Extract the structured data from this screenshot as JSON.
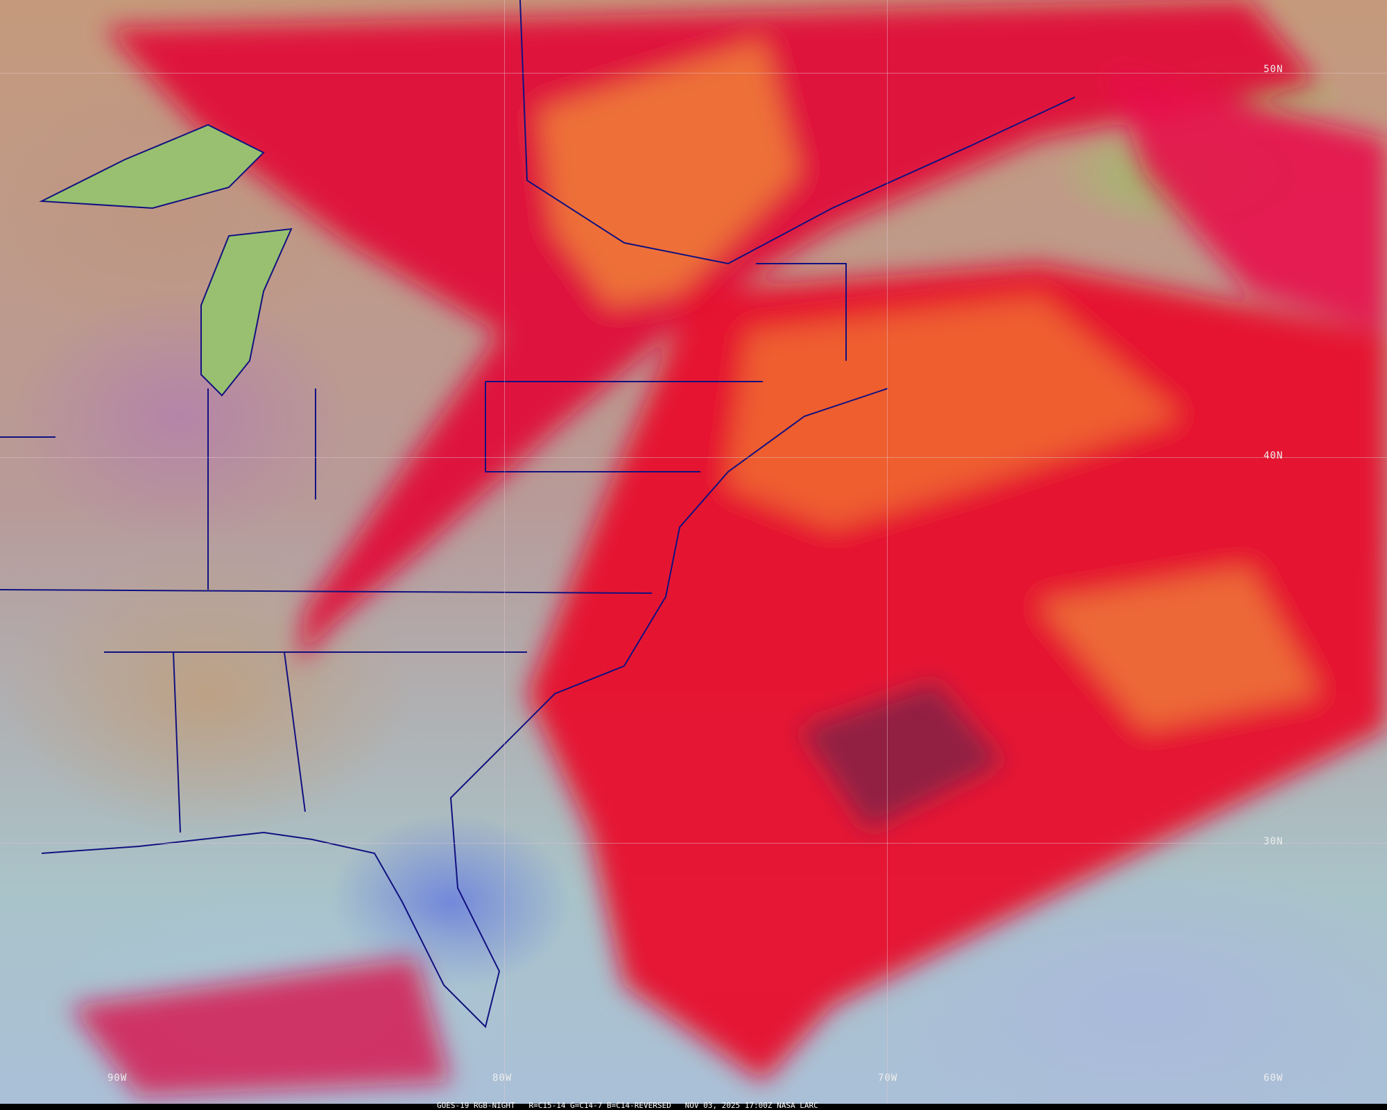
{
  "caption": {
    "satellite": "GOES-19",
    "product": "RGB-NIGHT",
    "channels": "R=C15-14 G=C14-7 B=C14-REVERSED",
    "datetime": "NOV 03, 2025 17:00Z",
    "source": "NASA LARC"
  },
  "grid_labels": {
    "lat": [
      "50N",
      "40N",
      "30N"
    ],
    "lon": [
      "90W",
      "80W",
      "70W",
      "60W"
    ]
  },
  "colors": {
    "high_cloud": "#e0003a",
    "mid_cloud": "#f07a30",
    "land": "#c09a88",
    "water_clear": "#aac0d8",
    "lakes": "#98c070",
    "borders": "#101080"
  }
}
